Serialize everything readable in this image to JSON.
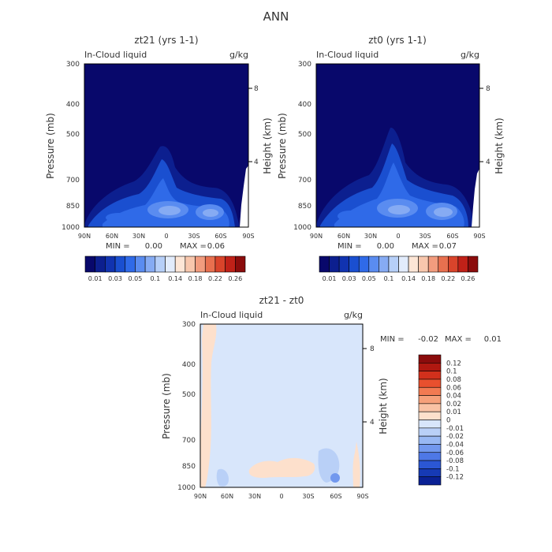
{
  "figure": {
    "title": "ANN"
  },
  "chart_data": [
    {
      "type": "heatmap",
      "title": "zt21 (yrs 1-1)",
      "field_label": "In-Cloud liquid",
      "units": "g/kg",
      "ylabel": "Pressure (mb)",
      "ylabel_right": "Height (km)",
      "x_ticks": [
        "90N",
        "60N",
        "30N",
        "0",
        "30S",
        "60S",
        "90S"
      ],
      "y_ticks": [
        "300",
        "400",
        "500",
        "700",
        "850",
        "1000"
      ],
      "y_ticks_right": [
        "8",
        "4"
      ],
      "stats": {
        "min_label": "MIN =",
        "min": "0.00",
        "max_label": "MAX =",
        "max": "0.06"
      },
      "colorbar": {
        "orientation": "horizontal",
        "colors": [
          "#08086b",
          "#0c1f8f",
          "#1133b0",
          "#1a4fd0",
          "#2f6ae8",
          "#5a8cf0",
          "#86abf3",
          "#b6cff8",
          "#e2ecfc",
          "#fde6d6",
          "#f8c7ad",
          "#f29c7e",
          "#e8704f",
          "#d9442b",
          "#c02118",
          "#8b0c0c"
        ],
        "labels": [
          "0.01",
          "0.03",
          "0.05",
          "0.1",
          "0.14",
          "0.18",
          "0.22",
          "0.26"
        ]
      }
    },
    {
      "type": "heatmap",
      "title": "zt0 (yrs 1-1)",
      "field_label": "In-Cloud liquid",
      "units": "g/kg",
      "ylabel": "Pressure (mb)",
      "ylabel_right": "Height (km)",
      "x_ticks": [
        "90N",
        "60N",
        "30N",
        "0",
        "30S",
        "60S",
        "90S"
      ],
      "y_ticks": [
        "300",
        "400",
        "500",
        "700",
        "850",
        "1000"
      ],
      "y_ticks_right": [
        "8",
        "4"
      ],
      "stats": {
        "min_label": "MIN =",
        "min": "0.00",
        "max_label": "MAX =",
        "max": "0.07"
      },
      "colorbar": {
        "orientation": "horizontal",
        "colors": [
          "#08086b",
          "#0c1f8f",
          "#1133b0",
          "#1a4fd0",
          "#2f6ae8",
          "#5a8cf0",
          "#86abf3",
          "#b6cff8",
          "#e2ecfc",
          "#fde6d6",
          "#f8c7ad",
          "#f29c7e",
          "#e8704f",
          "#d9442b",
          "#c02118",
          "#8b0c0c"
        ],
        "labels": [
          "0.01",
          "0.03",
          "0.05",
          "0.1",
          "0.14",
          "0.18",
          "0.22",
          "0.26"
        ]
      }
    },
    {
      "type": "heatmap",
      "title": "zt21 - zt0",
      "field_label": "In-Cloud liquid",
      "units": "g/kg",
      "ylabel": "Pressure (mb)",
      "ylabel_right": "Height (km)",
      "x_ticks": [
        "90N",
        "60N",
        "30N",
        "0",
        "30S",
        "60S",
        "90S"
      ],
      "y_ticks": [
        "300",
        "400",
        "500",
        "700",
        "850",
        "1000"
      ],
      "y_ticks_right": [
        "8",
        "4"
      ],
      "stats": {
        "min_label": "MIN =",
        "min": "-0.02",
        "max_label": "MAX =",
        "max": "0.01"
      },
      "colorbar": {
        "orientation": "vertical",
        "colors": [
          "#8b0c0c",
          "#b01810",
          "#d2301c",
          "#e8502e",
          "#f27a52",
          "#f6a07a",
          "#f9c2a4",
          "#fde0cc",
          "#d8e6fb",
          "#b9d0f7",
          "#98b8f3",
          "#7298ee",
          "#4e78e6",
          "#2b57d4",
          "#163ab5",
          "#0a2195"
        ],
        "labels": [
          "0.12",
          "0.1",
          "0.08",
          "0.06",
          "0.04",
          "0.02",
          "0.01",
          "0",
          "-0.01",
          "-0.02",
          "-0.04",
          "-0.06",
          "-0.08",
          "-0.1",
          "-0.12"
        ]
      }
    }
  ]
}
